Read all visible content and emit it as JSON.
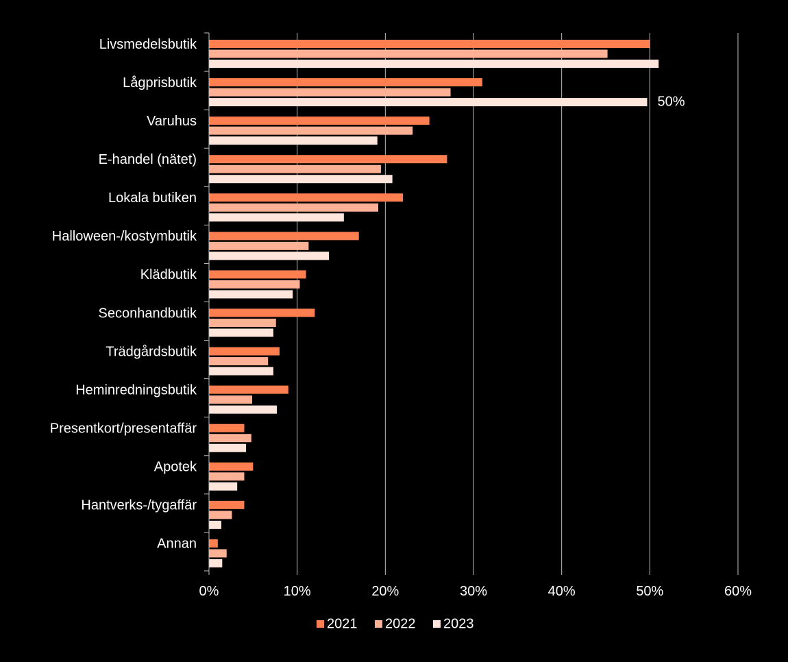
{
  "chart_data": {
    "type": "bar",
    "orientation": "horizontal",
    "categories": [
      "Livsmedelsbutik",
      "Lågprisbutik",
      "Varuhus",
      "E-handel (nätet)",
      "Lokala butiken",
      "Halloween-/kostymbutik",
      "Klädbutik",
      "Seconhandbutik",
      "Trädgårdsbutik",
      "Heminredningsbutik",
      "Presentkort/presentaffär",
      "Apotek",
      "Hantverks-/tygaffär",
      "Annan"
    ],
    "series": [
      {
        "name": "2021",
        "color": "#FF7F50",
        "values": [
          50,
          31,
          25,
          27,
          22,
          17,
          11,
          12,
          8,
          9,
          4,
          5,
          4,
          1
        ]
      },
      {
        "name": "2022",
        "color": "#FFB195",
        "values": [
          45.2,
          27.4,
          23.1,
          19.5,
          19.2,
          11.3,
          10.3,
          7.6,
          6.7,
          4.9,
          4.8,
          4.0,
          2.6,
          2.0
        ]
      },
      {
        "name": "2023",
        "color": "#FFE6DC",
        "values": [
          51.0,
          49.7,
          19.1,
          20.8,
          15.3,
          13.6,
          9.5,
          7.3,
          7.3,
          7.7,
          4.2,
          3.2,
          1.4,
          1.5
        ]
      }
    ],
    "x_ticks": [
      "0%",
      "10%",
      "20%",
      "30%",
      "40%",
      "50%",
      "60%"
    ],
    "xlim": [
      0,
      60
    ],
    "grid": true,
    "legend_position": "bottom",
    "annotations": [
      {
        "text": "50%",
        "category": "Lågprisbutik",
        "series": "2023"
      }
    ],
    "background": "#000000",
    "text_color": "#ffffff",
    "grid_color": "#bfbfbf"
  }
}
